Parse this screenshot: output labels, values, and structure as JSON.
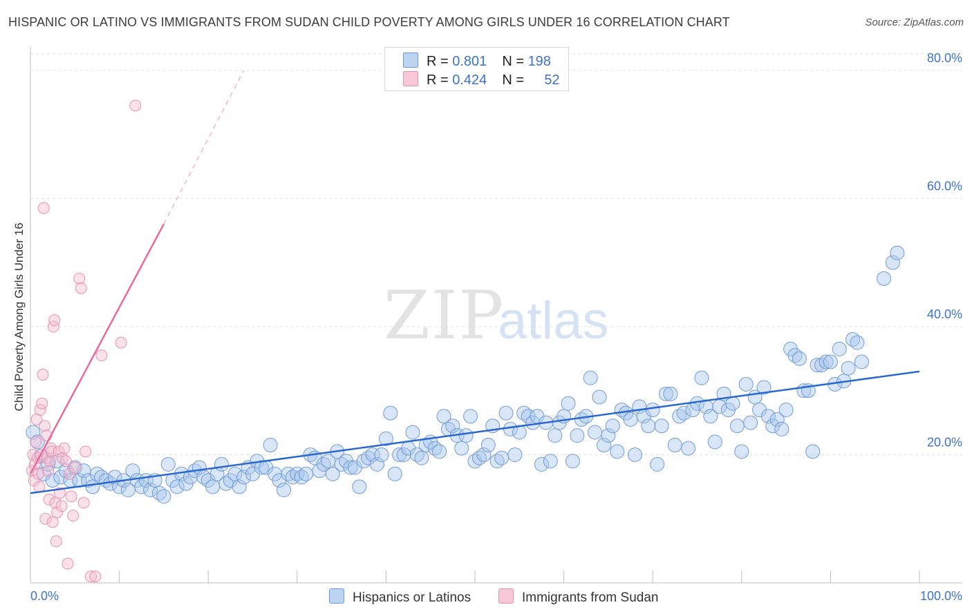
{
  "title": "HISPANIC OR LATINO VS IMMIGRANTS FROM SUDAN CHILD POVERTY AMONG GIRLS UNDER 16 CORRELATION CHART",
  "source": "Source: ZipAtlas.com",
  "watermark": {
    "zip": "ZIP",
    "atlas": "atlas"
  },
  "colors": {
    "blue": "#3b73c9",
    "blue_fill": "#a9c7ef",
    "pink": "#e8699a",
    "pink_fill": "#f6bcd0"
  },
  "legend": {
    "rows": [
      {
        "r_label": "R = ",
        "r_value": "0.801",
        "n_label": "N = ",
        "n_value": "198"
      },
      {
        "r_label": "R = ",
        "r_value": "0.424",
        "n_label": "N = ",
        "n_value": "52"
      }
    ]
  },
  "chart_data": {
    "type": "scatter",
    "title": "HISPANIC OR LATINO VS IMMIGRANTS FROM SUDAN CHILD POVERTY AMONG GIRLS UNDER 16 CORRELATION CHART",
    "ylabel": "Child Poverty Among Girls Under 16",
    "xlabel": "",
    "xlim": [
      0,
      100
    ],
    "ylim": [
      0,
      83
    ],
    "x_tick_labels": [
      "0.0%",
      "100.0%"
    ],
    "y_ticks": [
      20,
      40,
      60,
      80
    ],
    "y_tick_labels": [
      "20.0%",
      "40.0%",
      "60.0%",
      "80.0%"
    ],
    "grid": true,
    "legend_placement": "top-center",
    "series": [
      {
        "name": "Hispanics or Latinos",
        "color": "#3b73c9",
        "trend": {
          "x": [
            0,
            100
          ],
          "y": [
            14,
            33
          ]
        },
        "points": [
          [
            0.3,
            23.5
          ],
          [
            0.8,
            22
          ],
          [
            1.2,
            19.8
          ],
          [
            1.5,
            17
          ],
          [
            2,
            18.5
          ],
          [
            2.5,
            16
          ],
          [
            3,
            19
          ],
          [
            3.4,
            16.5
          ],
          [
            4,
            17.5
          ],
          [
            4.5,
            16
          ],
          [
            5,
            18
          ],
          [
            5.5,
            16
          ],
          [
            6,
            17.5
          ],
          [
            6.5,
            16
          ],
          [
            7,
            15
          ],
          [
            7.5,
            17
          ],
          [
            8,
            16.5
          ],
          [
            8.5,
            16
          ],
          [
            9,
            15.5
          ],
          [
            9.5,
            16.5
          ],
          [
            10,
            15
          ],
          [
            10.5,
            16
          ],
          [
            11,
            14.5
          ],
          [
            11.5,
            17.5
          ],
          [
            12,
            16
          ],
          [
            12.5,
            15
          ],
          [
            13,
            16
          ],
          [
            13.5,
            14.5
          ],
          [
            14,
            16
          ],
          [
            14.5,
            14
          ],
          [
            15,
            13.5
          ],
          [
            15.5,
            18.5
          ],
          [
            16,
            16
          ],
          [
            16.5,
            15
          ],
          [
            17,
            17
          ],
          [
            17.5,
            15.5
          ],
          [
            18,
            16.5
          ],
          [
            18.5,
            17.5
          ],
          [
            19,
            18
          ],
          [
            19.5,
            16.5
          ],
          [
            20,
            16
          ],
          [
            20.5,
            15
          ],
          [
            21,
            17
          ],
          [
            21.5,
            18.5
          ],
          [
            22,
            15.5
          ],
          [
            22.5,
            16
          ],
          [
            23,
            17
          ],
          [
            23.5,
            15
          ],
          [
            24,
            16.5
          ],
          [
            24.5,
            18
          ],
          [
            25,
            17
          ],
          [
            25.5,
            19
          ],
          [
            26,
            18
          ],
          [
            26.5,
            18
          ],
          [
            27,
            21.5
          ],
          [
            27.5,
            17
          ],
          [
            28,
            16
          ],
          [
            28.5,
            14.5
          ],
          [
            29,
            17
          ],
          [
            29.5,
            16.5
          ],
          [
            30,
            17
          ],
          [
            30.5,
            16.5
          ],
          [
            31,
            17
          ],
          [
            31.5,
            20
          ],
          [
            32,
            19.5
          ],
          [
            32.5,
            17.5
          ],
          [
            33,
            18.5
          ],
          [
            33.5,
            19
          ],
          [
            34,
            17
          ],
          [
            34.5,
            20.5
          ],
          [
            35,
            18.5
          ],
          [
            35.5,
            19
          ],
          [
            36,
            18
          ],
          [
            36.5,
            18
          ],
          [
            37,
            15
          ],
          [
            37.5,
            19
          ],
          [
            38,
            19.5
          ],
          [
            38.5,
            20
          ],
          [
            39,
            18.5
          ],
          [
            39.5,
            20
          ],
          [
            40,
            22.5
          ],
          [
            40.5,
            26.5
          ],
          [
            41,
            17
          ],
          [
            41.5,
            20
          ],
          [
            42,
            20
          ],
          [
            42.5,
            21
          ],
          [
            43,
            23.5
          ],
          [
            43.5,
            20
          ],
          [
            44,
            19.5
          ],
          [
            44.5,
            21.5
          ],
          [
            45,
            22
          ],
          [
            45.5,
            21
          ],
          [
            46,
            20.5
          ],
          [
            46.5,
            26
          ],
          [
            47,
            24
          ],
          [
            47.5,
            24.5
          ],
          [
            48,
            23
          ],
          [
            48.5,
            21
          ],
          [
            49,
            23
          ],
          [
            49.5,
            26
          ],
          [
            50,
            19
          ],
          [
            50.5,
            19.5
          ],
          [
            51,
            20
          ],
          [
            51.5,
            21.5
          ],
          [
            52,
            24.5
          ],
          [
            52.5,
            19
          ],
          [
            53,
            19.5
          ],
          [
            53.5,
            26.5
          ],
          [
            54,
            24
          ],
          [
            54.5,
            20
          ],
          [
            55,
            23.5
          ],
          [
            55.5,
            26.5
          ],
          [
            56,
            26
          ],
          [
            56.5,
            25
          ],
          [
            57,
            26
          ],
          [
            57.5,
            18.5
          ],
          [
            58,
            25
          ],
          [
            58.5,
            19
          ],
          [
            59,
            23
          ],
          [
            59.5,
            25
          ],
          [
            60,
            26
          ],
          [
            60.5,
            28
          ],
          [
            61,
            19
          ],
          [
            61.5,
            23
          ],
          [
            62,
            25.5
          ],
          [
            62.5,
            26
          ],
          [
            63,
            32
          ],
          [
            63.5,
            23.5
          ],
          [
            64,
            29
          ],
          [
            64.5,
            21.5
          ],
          [
            65,
            23
          ],
          [
            65.5,
            24.5
          ],
          [
            66,
            20.5
          ],
          [
            66.5,
            27
          ],
          [
            67,
            26.5
          ],
          [
            67.5,
            25.5
          ],
          [
            68,
            20
          ],
          [
            68.5,
            27.5
          ],
          [
            69,
            26
          ],
          [
            69.5,
            24.5
          ],
          [
            70,
            27
          ],
          [
            70.5,
            18.5
          ],
          [
            71,
            24.5
          ],
          [
            71.5,
            29.5
          ],
          [
            72,
            29.5
          ],
          [
            72.5,
            21.5
          ],
          [
            73,
            26
          ],
          [
            73.5,
            26.5
          ],
          [
            74,
            21
          ],
          [
            74.5,
            27
          ],
          [
            75,
            28
          ],
          [
            75.5,
            32
          ],
          [
            76,
            27.5
          ],
          [
            76.5,
            26
          ],
          [
            77,
            22
          ],
          [
            77.5,
            27.5
          ],
          [
            78,
            29.5
          ],
          [
            78.5,
            27
          ],
          [
            79,
            28
          ],
          [
            79.5,
            24.5
          ],
          [
            80,
            20.5
          ],
          [
            80.5,
            31
          ],
          [
            81,
            25
          ],
          [
            81.5,
            29
          ],
          [
            82,
            27
          ],
          [
            82.5,
            30.5
          ],
          [
            83,
            26
          ],
          [
            83.5,
            24.5
          ],
          [
            84,
            25.5
          ],
          [
            84.5,
            24
          ],
          [
            85,
            27
          ],
          [
            85.5,
            36.5
          ],
          [
            86,
            35.5
          ],
          [
            86.5,
            35
          ],
          [
            87,
            30
          ],
          [
            87.5,
            30
          ],
          [
            88,
            20.5
          ],
          [
            88.5,
            34
          ],
          [
            89,
            34
          ],
          [
            89.5,
            34.5
          ],
          [
            90,
            34.5
          ],
          [
            90.5,
            31
          ],
          [
            91,
            36.5
          ],
          [
            91.5,
            31.5
          ],
          [
            92,
            33.5
          ],
          [
            92.5,
            38
          ],
          [
            93,
            37.5
          ],
          [
            93.5,
            34.5
          ],
          [
            96,
            47.5
          ],
          [
            97,
            50
          ],
          [
            97.5,
            51.5
          ]
        ]
      },
      {
        "name": "Immigrants from Sudan",
        "color": "#e8699a",
        "trend": {
          "x": [
            0,
            15
          ],
          "y": [
            17,
            56
          ]
        },
        "trend_dashed": {
          "x": [
            15,
            24
          ],
          "y": [
            56,
            80
          ]
        },
        "points": [
          [
            0.2,
            17.5
          ],
          [
            0.3,
            20
          ],
          [
            0.4,
            16
          ],
          [
            0.5,
            18.5
          ],
          [
            0.6,
            22
          ],
          [
            0.7,
            25.5
          ],
          [
            0.8,
            19.5
          ],
          [
            0.9,
            17
          ],
          [
            1,
            15
          ],
          [
            1.1,
            27
          ],
          [
            1.2,
            20
          ],
          [
            1.3,
            28
          ],
          [
            1.4,
            32.5
          ],
          [
            1.5,
            58.5
          ],
          [
            1.6,
            24.5
          ],
          [
            1.7,
            10
          ],
          [
            1.8,
            23
          ],
          [
            1.9,
            19.5
          ],
          [
            2,
            17.5
          ],
          [
            2.1,
            13
          ],
          [
            2.2,
            19
          ],
          [
            2.3,
            21
          ],
          [
            2.4,
            20.5
          ],
          [
            2.5,
            9.5
          ],
          [
            2.6,
            40
          ],
          [
            2.7,
            41
          ],
          [
            2.8,
            12.5
          ],
          [
            2.9,
            6.5
          ],
          [
            3,
            11
          ],
          [
            3.2,
            20.5
          ],
          [
            3.3,
            14
          ],
          [
            3.5,
            12
          ],
          [
            3.6,
            19.5
          ],
          [
            3.8,
            21
          ],
          [
            4,
            19
          ],
          [
            4.2,
            3
          ],
          [
            4.4,
            17
          ],
          [
            4.6,
            13.5
          ],
          [
            4.8,
            10.5
          ],
          [
            5,
            18
          ],
          [
            5.5,
            47.5
          ],
          [
            5.7,
            46
          ],
          [
            6,
            12.5
          ],
          [
            6.2,
            20.5
          ],
          [
            6.8,
            1
          ],
          [
            7.3,
            1
          ],
          [
            8,
            35.5
          ],
          [
            10.2,
            37.5
          ],
          [
            11.8,
            74.5
          ]
        ]
      }
    ]
  },
  "bottom_legend": {
    "items": [
      "Hispanics or Latinos",
      "Immigrants from Sudan"
    ]
  }
}
